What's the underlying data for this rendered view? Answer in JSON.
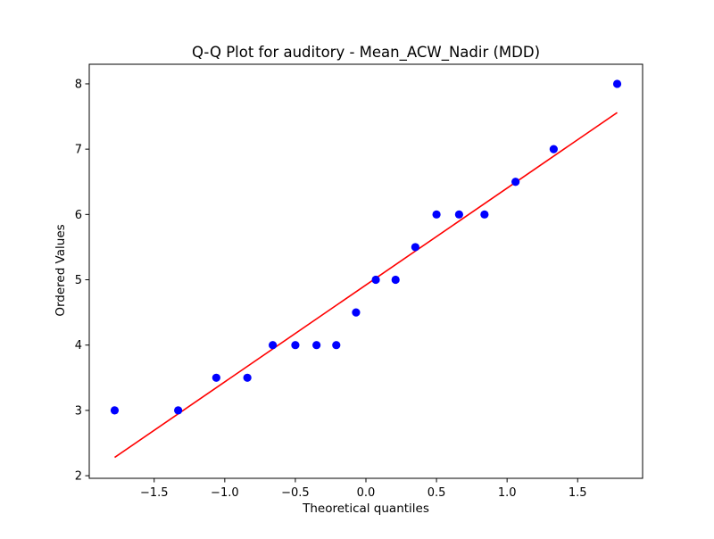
{
  "chart_data": {
    "type": "scatter",
    "title": "Q-Q Plot for auditory - Mean_ACW_Nadir (MDD)",
    "xlabel": "Theoretical quantiles",
    "ylabel": "Ordered Values",
    "xlim": [
      -1.96,
      1.96
    ],
    "ylim": [
      1.96,
      8.3
    ],
    "x_ticks": [
      -1.5,
      -1.0,
      -0.5,
      0.0,
      0.5,
      1.0,
      1.5
    ],
    "x_tick_labels": [
      "−1.5",
      "−1.0",
      "−0.5",
      "0.0",
      "0.5",
      "1.0",
      "1.5"
    ],
    "y_ticks": [
      2,
      3,
      4,
      5,
      6,
      7,
      8
    ],
    "y_tick_labels": [
      "2",
      "3",
      "4",
      "5",
      "6",
      "7",
      "8"
    ],
    "grid": false,
    "points": {
      "color": "#0000ff",
      "x": [
        -1.78,
        -1.33,
        -1.06,
        -0.84,
        -0.66,
        -0.5,
        -0.35,
        -0.21,
        -0.07,
        0.07,
        0.21,
        0.35,
        0.5,
        0.66,
        0.84,
        1.06,
        1.33,
        1.78
      ],
      "y": [
        3.0,
        3.0,
        3.5,
        3.5,
        4.0,
        4.0,
        4.0,
        4.0,
        4.5,
        5.0,
        5.0,
        5.5,
        6.0,
        6.0,
        6.0,
        6.5,
        7.0,
        8.0
      ]
    },
    "fit_line": {
      "color": "#ff0000",
      "x": [
        -1.78,
        1.78
      ],
      "y": [
        2.28,
        7.56
      ]
    }
  }
}
